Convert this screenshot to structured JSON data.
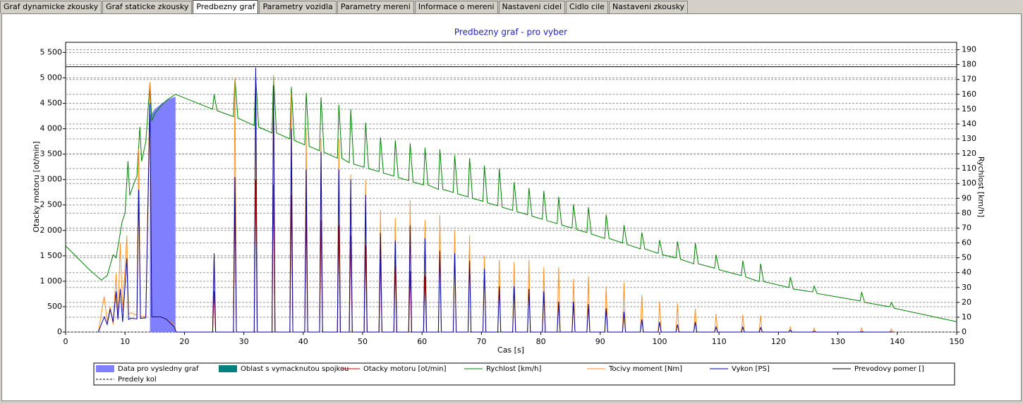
{
  "tabs": [
    "Graf dynamicke zkousky",
    "Graf staticke zkousky",
    "Predbezny graf",
    "Parametry vozidla",
    "Parametry mereni",
    "Informace o mereni",
    "Nastaveni cidel",
    "Cidlo cile",
    "Nastaveni zkousky"
  ],
  "active_tab": 2,
  "chart_data": {
    "type": "line",
    "title": "Predbezny graf - pro vyber",
    "x_label": "Cas [s]",
    "y_label": "Otacky motoru [ot/min]",
    "y2_label": "Rychlost [km/h]",
    "xlim": [
      0,
      150
    ],
    "xticks": [
      0,
      10,
      20,
      30,
      40,
      50,
      60,
      70,
      80,
      90,
      100,
      110,
      120,
      130,
      140,
      150
    ],
    "ylim": [
      0,
      5700
    ],
    "yticks": [
      0,
      500,
      {
        "value": 1000,
        "label": "1 000"
      },
      {
        "value": 1500,
        "label": "1 500"
      },
      {
        "value": 2000,
        "label": "2 000"
      },
      {
        "value": 2500,
        "label": "2 500"
      },
      {
        "value": 3000,
        "label": "3 000"
      },
      {
        "value": 3500,
        "label": "3 500"
      },
      {
        "value": 4000,
        "label": "4 000"
      },
      {
        "value": 4500,
        "label": "4 500"
      },
      {
        "value": 5000,
        "label": "5 000"
      },
      {
        "value": 5500,
        "label": "5 500"
      }
    ],
    "y2lim": [
      0,
      195
    ],
    "y2ticks": [
      0,
      10,
      20,
      30,
      40,
      50,
      60,
      70,
      80,
      90,
      100,
      110,
      120,
      130,
      140,
      150,
      160,
      170,
      180,
      190
    ],
    "grid": true,
    "series": [
      {
        "name": "Data pro vysledny graf",
        "color": "#8080ff",
        "style": "area",
        "x": [
          14.2,
          15,
          16,
          17,
          18,
          18.5
        ],
        "values": [
          4250,
          4380,
          4480,
          4560,
          4610,
          4630
        ]
      },
      {
        "name": "Oblast s vymacknutou spojkou",
        "color": "#008080",
        "style": "area",
        "x": [],
        "values": []
      },
      {
        "name": "Otacky motoru [ot/min]",
        "color": "#cc0000",
        "style": "line",
        "x": [
          24.75,
          25,
          25.25,
          28.25,
          28.5,
          28.75,
          31.75,
          32,
          32.25,
          34.75,
          35,
          35.25,
          37.75,
          38,
          38.25,
          40.25,
          40.5,
          40.75,
          42.75,
          43,
          43.25,
          45.75,
          46,
          46.25,
          47.75,
          48,
          48.25,
          50.25,
          50.5,
          50.75,
          52.75,
          53,
          53.25,
          55.25,
          55.5,
          55.75,
          57.75,
          58,
          58.25,
          60.25,
          60.5,
          60.75
        ],
        "values": [
          0,
          800,
          0,
          0,
          2600,
          0,
          0,
          3000,
          0,
          0,
          2900,
          0,
          0,
          2700,
          0,
          0,
          2400,
          0,
          0,
          2200,
          0,
          0,
          2100,
          0,
          0,
          1900,
          0,
          0,
          1700,
          0,
          0,
          1500,
          0,
          0,
          1300,
          0,
          0,
          1200,
          0,
          0,
          1100,
          0
        ]
      },
      {
        "name": "Rychlost [km/h]",
        "color": "#008000",
        "style": "line",
        "axis": "y2",
        "x": [
          0,
          2,
          4,
          6,
          7,
          7.5,
          8,
          8.5,
          9,
          9.5,
          10,
          10.5,
          10.8,
          11.5,
          12,
          12.5,
          12.8,
          13.5,
          14.2,
          14.5,
          15,
          16,
          17,
          18.5,
          24.75,
          25,
          25.5,
          28.25,
          28.5,
          29,
          31.75,
          32,
          32.5,
          34.75,
          35,
          35.5,
          37.75,
          38,
          38.5,
          40.25,
          40.5,
          41,
          42.75,
          43,
          43.5,
          45.75,
          46,
          46.5,
          47.75,
          48,
          48.5,
          50.25,
          50.5,
          51,
          52.75,
          53,
          53.5,
          55.25,
          55.5,
          56,
          57.75,
          58,
          58.5,
          60.25,
          60.5,
          61,
          62.75,
          63,
          63.5,
          65.25,
          65.5,
          66,
          67.75,
          68,
          68.5,
          70.25,
          70.5,
          71,
          72.75,
          73,
          73.5,
          75.25,
          75.5,
          76,
          77.75,
          78,
          78.5,
          80.25,
          80.5,
          81,
          82.75,
          83,
          83.5,
          85.25,
          85.5,
          86,
          87.75,
          88,
          88.5,
          90.75,
          91,
          91.5,
          93.75,
          94,
          94.5,
          96.75,
          97,
          97.5,
          99.75,
          100,
          100.5,
          102.75,
          103,
          103.5,
          105.75,
          106,
          106.5,
          109.25,
          109.5,
          110,
          113.75,
          114,
          114.5,
          116.75,
          117,
          117.5,
          121.75,
          122,
          122.5,
          125.75,
          126,
          126.5,
          133.75,
          134,
          134.5,
          138.75,
          139,
          139.5,
          150
        ],
        "values": [
          58,
          50,
          42,
          35,
          38,
          45,
          52,
          50,
          62,
          74,
          80,
          115,
          92,
          100,
          105,
          138,
          115,
          128,
          168,
          142,
          147,
          152,
          156,
          160,
          150,
          160,
          149,
          145,
          171,
          144,
          139,
          172,
          138,
          134,
          172,
          134,
          130,
          165,
          129,
          126,
          161,
          125,
          122,
          158,
          121,
          117,
          153,
          117,
          114,
          150,
          113,
          111,
          141,
          110,
          108,
          131,
          107,
          105,
          129,
          104,
          102,
          127,
          101,
          99,
          124,
          99,
          96,
          123,
          96,
          94,
          119,
          93,
          91,
          117,
          90,
          88,
          112,
          87,
          85,
          110,
          84,
          82,
          101,
          81,
          79,
          97,
          78,
          76,
          95,
          75,
          73,
          91,
          72,
          70,
          86,
          69,
          67,
          84,
          66,
          63,
          79,
          63,
          60,
          72,
          59,
          56,
          67,
          56,
          53,
          62,
          52,
          50,
          61,
          49,
          46,
          60,
          46,
          43,
          52,
          42,
          38,
          48,
          37,
          34,
          46,
          34,
          30,
          37,
          29,
          27,
          31,
          26,
          21,
          27,
          20,
          17,
          20,
          16,
          7
        ]
      },
      {
        "name": "Tocivy moment [Nm]",
        "color": "#ff9020",
        "style": "line",
        "x": [
          5.5,
          6.5,
          7,
          7.5,
          8,
          8.5,
          8.8,
          9.2,
          9.6,
          10.3,
          10.6,
          11,
          12,
          12.3,
          12.6,
          13.5,
          14.2,
          14.5,
          16,
          17,
          18.3,
          18.6,
          24.75,
          25,
          25.25,
          28.25,
          28.5,
          28.75,
          31.75,
          32,
          32.25,
          34.75,
          35,
          35.25,
          37.75,
          38,
          38.25,
          40.25,
          40.5,
          40.75,
          42.75,
          43,
          43.25,
          45.75,
          46,
          46.25,
          47.75,
          48,
          48.25,
          50.25,
          50.5,
          50.75,
          52.75,
          53,
          53.25,
          55.25,
          55.5,
          55.75,
          57.75,
          58,
          58.25,
          60.25,
          60.5,
          60.75,
          62.75,
          63,
          63.25,
          65.25,
          65.5,
          65.75,
          67.75,
          68,
          68.25,
          70.25,
          70.5,
          70.75,
          72.75,
          73,
          73.25,
          75.25,
          75.5,
          75.75,
          77.75,
          78,
          78.25,
          80.25,
          80.5,
          80.75,
          82.75,
          83,
          83.25,
          85.25,
          85.5,
          85.75,
          87.75,
          88,
          88.25,
          90.75,
          91,
          91.25,
          93.75,
          94,
          94.25,
          96.75,
          97,
          97.25,
          99.75,
          100,
          100.25,
          102.75,
          103,
          103.25,
          105.75,
          106,
          106.25,
          109.25,
          109.5,
          109.75,
          113.75,
          114,
          114.25,
          116.75,
          117,
          117.25,
          121.75,
          122,
          122.25,
          125.75,
          126,
          126.25,
          133.75,
          134,
          134.25,
          138.75,
          139,
          139.25
        ],
        "values": [
          0,
          700,
          200,
          500,
          150,
          1150,
          300,
          1750,
          400,
          1900,
          350,
          380,
          330,
          3600,
          300,
          320,
          4900,
          300,
          300,
          250,
          150,
          0,
          0,
          1500,
          0,
          0,
          5000,
          0,
          0,
          5150,
          0,
          0,
          5050,
          0,
          0,
          4700,
          0,
          0,
          4000,
          0,
          0,
          3800,
          0,
          0,
          3800,
          0,
          0,
          3100,
          0,
          0,
          3000,
          0,
          0,
          2400,
          0,
          0,
          2250,
          0,
          0,
          2600,
          0,
          0,
          2200,
          0,
          0,
          2300,
          0,
          0,
          2000,
          0,
          0,
          1900,
          0,
          0,
          1500,
          0,
          0,
          1420,
          0,
          0,
          1380,
          0,
          0,
          1420,
          0,
          0,
          1280,
          0,
          0,
          1280,
          0,
          0,
          1050,
          0,
          0,
          1100,
          0,
          0,
          900,
          0,
          0,
          970,
          0,
          0,
          730,
          0,
          0,
          610,
          0,
          0,
          560,
          0,
          0,
          460,
          0,
          0,
          360,
          0,
          0,
          340,
          0,
          0,
          330,
          0,
          0,
          100,
          0,
          0,
          80,
          0,
          0,
          80,
          0,
          0,
          60,
          0
        ]
      },
      {
        "name": "Vykon [PS]",
        "color": "#0000a0",
        "style": "line",
        "x": [
          5.5,
          6.5,
          7,
          7.5,
          8,
          8.5,
          8.8,
          9.2,
          9.6,
          10.3,
          10.6,
          11,
          12,
          12.3,
          12.6,
          13.5,
          14.2,
          14.5,
          16,
          17,
          18.3,
          18.6,
          24.75,
          25,
          25.25,
          28.25,
          28.5,
          28.75,
          31.75,
          32,
          32.25,
          34.75,
          35,
          35.25,
          37.75,
          38,
          38.25,
          40.25,
          40.5,
          40.75,
          42.75,
          43,
          43.25,
          45.75,
          46,
          46.25,
          47.75,
          48,
          48.25,
          50.25,
          50.5,
          50.75,
          52.75,
          53,
          53.25,
          55.25,
          55.5,
          55.75,
          57.75,
          58,
          58.25,
          60.25,
          60.5,
          60.75,
          62.75,
          63,
          63.25,
          65.25,
          65.5,
          65.75,
          67.75,
          68,
          68.25,
          70.25,
          70.5,
          70.75,
          72.75,
          73,
          73.25,
          75.25,
          75.5,
          75.75,
          77.75,
          78,
          78.25,
          80.25,
          80.5,
          80.75,
          82.75,
          83,
          83.25,
          85.25,
          85.5,
          85.75,
          87.75,
          88,
          88.25,
          90.75,
          91,
          91.25,
          93.75,
          94,
          94.25,
          96.75,
          97,
          97.25,
          99.75,
          100,
          100.25,
          102.75,
          103,
          103.25,
          105.75,
          106,
          106.25,
          109.25,
          109.5,
          109.75,
          113.75,
          114,
          114.25,
          116.75,
          117,
          117.25,
          121.75,
          122,
          122.25,
          125.75,
          126,
          126.25,
          133.75,
          134,
          134.25,
          138.75,
          139,
          139.25
        ],
        "values": [
          0,
          300,
          150,
          450,
          200,
          800,
          250,
          850,
          200,
          1450,
          250,
          270,
          260,
          2800,
          270,
          280,
          4500,
          300,
          300,
          250,
          100,
          0,
          0,
          1550,
          0,
          0,
          3050,
          0,
          0,
          5200,
          0,
          0,
          4850,
          0,
          0,
          4000,
          0,
          0,
          3200,
          0,
          0,
          3550,
          0,
          0,
          3200,
          0,
          0,
          3000,
          0,
          0,
          2700,
          0,
          0,
          1950,
          0,
          0,
          1800,
          0,
          0,
          2100,
          0,
          0,
          1850,
          0,
          0,
          1600,
          0,
          0,
          1550,
          0,
          0,
          1400,
          0,
          0,
          1250,
          0,
          0,
          900,
          0,
          0,
          900,
          0,
          0,
          850,
          0,
          0,
          800,
          0,
          0,
          600,
          0,
          0,
          600,
          0,
          0,
          550,
          0,
          0,
          470,
          0,
          0,
          400,
          0,
          0,
          250,
          0,
          0,
          200,
          0,
          0,
          150,
          0,
          0,
          200,
          0,
          0,
          100,
          0,
          0,
          100,
          0,
          0,
          90,
          0,
          0,
          40,
          0,
          0,
          20,
          0,
          0,
          10,
          0,
          0,
          5,
          0
        ]
      },
      {
        "name": "Prevodovy pomer []",
        "color": "#000000",
        "style": "line",
        "x": [
          0,
          150
        ],
        "values": [
          5220,
          5220
        ]
      },
      {
        "name": "Predely kol",
        "color": "#000000",
        "style": "line",
        "dash": true,
        "x": [],
        "values": []
      }
    ]
  }
}
